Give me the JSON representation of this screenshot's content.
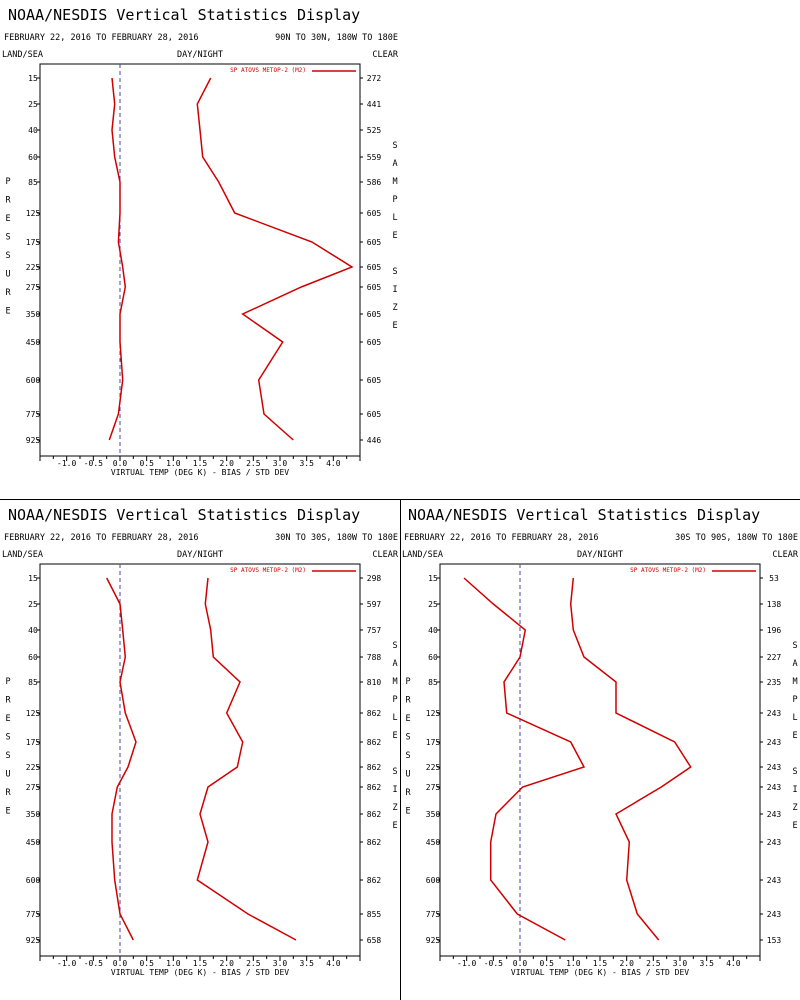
{
  "colors": {
    "series": "#d00000",
    "axis": "#000000",
    "zero_line": "#4444aa"
  },
  "chart_data": [
    {
      "type": "line",
      "title": "NOAA/NESDIS Vertical Statistics Display",
      "date_range": "FEBRUARY 22, 2016 TO FEBRUARY 28, 2016",
      "region": "90N TO 30N, 180W TO 180E",
      "land_sea_label": "LAND/SEA",
      "day_night_label": "DAY/NIGHT",
      "clear_label": "CLEAR",
      "ylabel": "PRESSURE",
      "y2label": "SAMPLE SIZE",
      "xlabel": "VIRTUAL TEMP (DEG K) - BIAS / STD DEV",
      "xlim": [
        -1.5,
        4.5
      ],
      "xticks": [
        "-1.0",
        "-0.5",
        "0.0",
        "0.5",
        "1.0",
        "1.5",
        "2.0",
        "2.5",
        "3.0",
        "3.5",
        "4.0"
      ],
      "pressure_levels": [
        "15",
        "25",
        "40",
        "60",
        "85",
        "125",
        "175",
        "225",
        "275",
        "350",
        "450",
        "600",
        "775",
        "925"
      ],
      "sample_size": [
        "272",
        "441",
        "525",
        "559",
        "586",
        "605",
        "605",
        "605",
        "605",
        "605",
        "605",
        "605",
        "605",
        "446"
      ],
      "legend": "SP ATOVS METOP-2 (M2)",
      "series": [
        {
          "name": "bias",
          "values": [
            -0.15,
            -0.1,
            -0.15,
            -0.1,
            0.0,
            0.0,
            -0.03,
            0.05,
            0.1,
            0.0,
            0.0,
            0.05,
            -0.03,
            -0.2
          ]
        },
        {
          "name": "std_dev",
          "values": [
            1.7,
            1.45,
            1.5,
            1.55,
            1.85,
            2.15,
            3.6,
            4.35,
            3.4,
            2.3,
            3.05,
            2.6,
            2.7,
            3.25
          ]
        }
      ]
    },
    {
      "type": "line",
      "title": "NOAA/NESDIS Vertical Statistics Display",
      "date_range": "FEBRUARY 22, 2016 TO FEBRUARY 28, 2016",
      "region": "30N TO 30S, 180W TO 180E",
      "land_sea_label": "LAND/SEA",
      "day_night_label": "DAY/NIGHT",
      "clear_label": "CLEAR",
      "ylabel": "PRESSURE",
      "y2label": "SAMPLE SIZE",
      "xlabel": "VIRTUAL TEMP (DEG K) - BIAS / STD DEV",
      "xlim": [
        -1.5,
        4.5
      ],
      "xticks": [
        "-1.0",
        "-0.5",
        "0.0",
        "0.5",
        "1.0",
        "1.5",
        "2.0",
        "2.5",
        "3.0",
        "3.5",
        "4.0"
      ],
      "pressure_levels": [
        "15",
        "25",
        "40",
        "60",
        "85",
        "125",
        "175",
        "225",
        "275",
        "350",
        "450",
        "600",
        "775",
        "925"
      ],
      "sample_size": [
        "298",
        "597",
        "757",
        "788",
        "810",
        "862",
        "862",
        "862",
        "862",
        "862",
        "862",
        "862",
        "855",
        "658"
      ],
      "legend": "SP ATOVS METOP-2 (M2)",
      "series": [
        {
          "name": "bias",
          "values": [
            -0.25,
            0.0,
            0.05,
            0.1,
            0.0,
            0.1,
            0.3,
            0.15,
            -0.05,
            -0.15,
            -0.15,
            -0.1,
            0.0,
            0.25
          ]
        },
        {
          "name": "std_dev",
          "values": [
            1.65,
            1.6,
            1.7,
            1.75,
            2.25,
            2.0,
            2.3,
            2.2,
            1.65,
            1.5,
            1.65,
            1.45,
            2.4,
            3.3
          ]
        }
      ]
    },
    {
      "type": "line",
      "title": "NOAA/NESDIS Vertical Statistics Display",
      "date_range": "FEBRUARY 22, 2016 TO FEBRUARY 28, 2016",
      "region": "30S TO 90S, 180W TO 180E",
      "land_sea_label": "LAND/SEA",
      "day_night_label": "DAY/NIGHT",
      "clear_label": "CLEAR",
      "ylabel": "PRESSURE",
      "y2label": "SAMPLE SIZE",
      "xlabel": "VIRTUAL TEMP (DEG K) - BIAS / STD DEV",
      "xlim": [
        -1.5,
        4.5
      ],
      "xticks": [
        "-1.0",
        "-0.5",
        "0.0",
        "0.5",
        "1.0",
        "1.5",
        "2.0",
        "2.5",
        "3.0",
        "3.5",
        "4.0"
      ],
      "pressure_levels": [
        "15",
        "25",
        "40",
        "60",
        "85",
        "125",
        "175",
        "225",
        "275",
        "350",
        "450",
        "600",
        "775",
        "925"
      ],
      "sample_size": [
        "53",
        "138",
        "196",
        "227",
        "235",
        "243",
        "243",
        "243",
        "243",
        "243",
        "243",
        "243",
        "243",
        "153"
      ],
      "legend": "SP ATOVS METOP-2 (M2)",
      "series": [
        {
          "name": "bias",
          "values": [
            -1.05,
            -0.5,
            0.1,
            0.0,
            -0.3,
            -0.25,
            0.95,
            1.2,
            0.05,
            -0.45,
            -0.55,
            -0.55,
            -0.05,
            0.85
          ]
        },
        {
          "name": "std_dev",
          "values": [
            1.0,
            0.95,
            1.0,
            1.2,
            1.8,
            1.8,
            2.9,
            3.2,
            2.65,
            1.8,
            2.05,
            2.0,
            2.2,
            2.6
          ]
        }
      ]
    }
  ]
}
